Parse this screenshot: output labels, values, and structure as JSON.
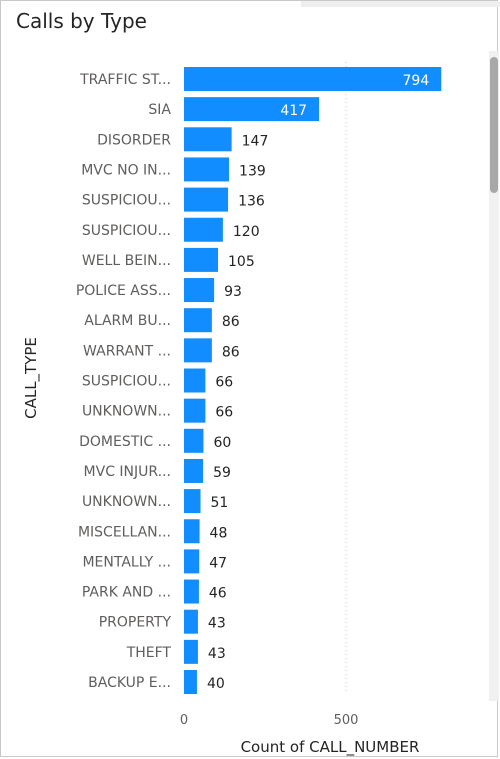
{
  "chart_data": {
    "type": "bar",
    "orientation": "horizontal",
    "title": "Calls by Type",
    "xlabel": "Count of CALL_NUMBER",
    "ylabel": "CALL_TYPE",
    "xlim": [
      0,
      800
    ],
    "x_ticks": [
      0,
      500
    ],
    "grid": true,
    "bar_color": "#118DFF",
    "categories": [
      "TRAFFIC ST...",
      "SIA",
      "DISORDER",
      "MVC NO IN...",
      "SUSPICIOU...",
      "SUSPICIOU...",
      "WELL BEIN...",
      "POLICE ASS...",
      "ALARM BU...",
      "WARRANT ...",
      "SUSPICIOU...",
      "UNKNOWN...",
      "DOMESTIC ...",
      "MVC INJUR...",
      "UNKNOWN...",
      "MISCELLAN...",
      "MENTALLY ...",
      "PARK AND ...",
      "PROPERTY",
      "THEFT",
      "BACKUP E..."
    ],
    "values": [
      794,
      417,
      147,
      139,
      136,
      120,
      105,
      93,
      86,
      86,
      66,
      66,
      60,
      59,
      51,
      48,
      47,
      46,
      43,
      43,
      40
    ]
  }
}
